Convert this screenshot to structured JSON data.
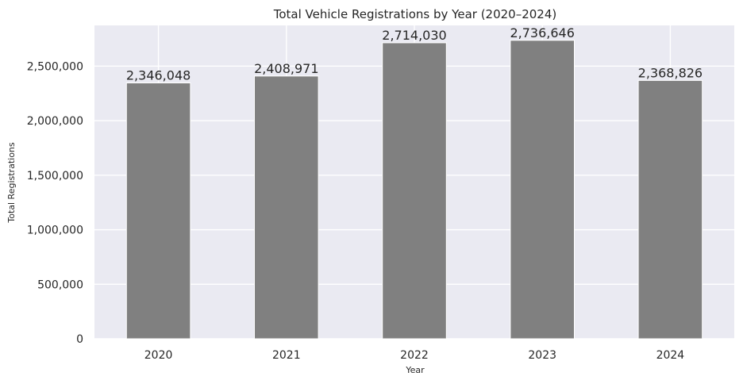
{
  "chart_data": {
    "type": "bar",
    "title": "Total Vehicle Registrations by Year (2020–2024)",
    "xlabel": "Year",
    "ylabel": "Total Registrations",
    "categories": [
      "2020",
      "2021",
      "2022",
      "2023",
      "2024"
    ],
    "values": [
      2346048,
      2408971,
      2714030,
      2736646,
      2368826
    ],
    "value_labels": [
      "2,346,048",
      "2,408,971",
      "2,714,030",
      "2,736,646",
      "2,368,826"
    ],
    "yticks": [
      0,
      500000,
      1000000,
      1500000,
      2000000,
      2500000
    ],
    "ytick_labels": [
      "0",
      "500,000",
      "1,000,000",
      "1,500,000",
      "2,000,000",
      "2,500,000"
    ],
    "ylim": [
      0,
      2873478
    ],
    "grid": true,
    "colors": {
      "bar": "#808080",
      "plot_background": "#eaeaf2",
      "grid": "#ffffff",
      "text": "#262626"
    }
  }
}
